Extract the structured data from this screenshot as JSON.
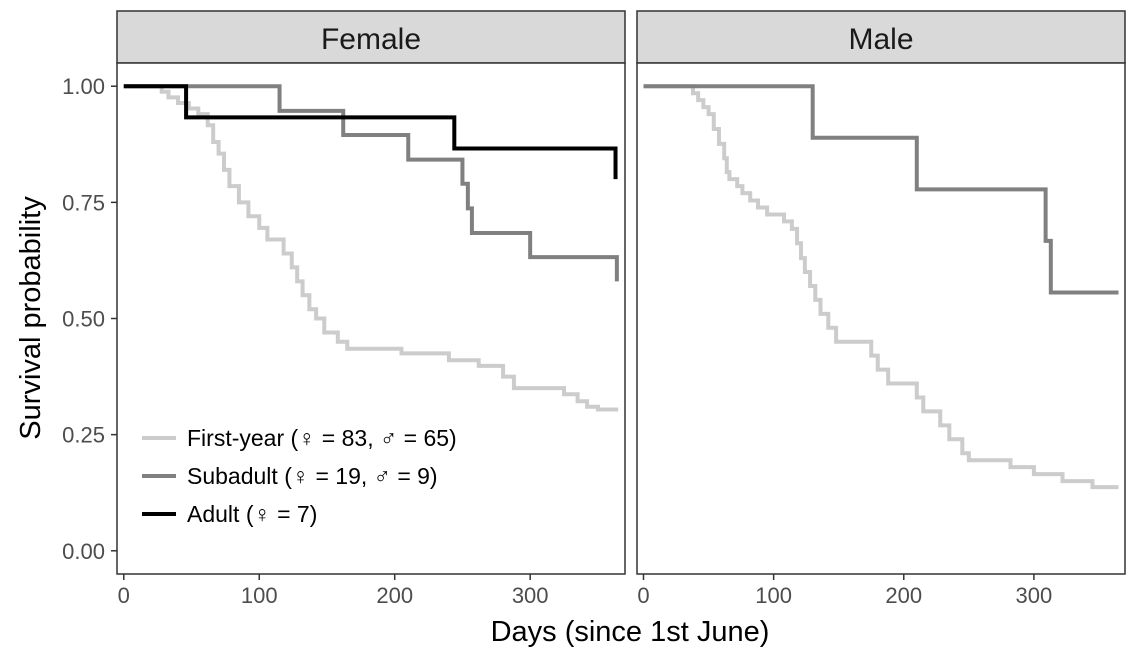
{
  "chart_data": {
    "type": "line",
    "step": true,
    "xlabel": "Days (since 1st June)",
    "ylabel": "Survival probability",
    "xlim": [
      -5,
      370
    ],
    "ylim": [
      -0.05,
      1.05
    ],
    "x_ticks": [
      0,
      100,
      200,
      300
    ],
    "y_ticks": [
      0.0,
      0.25,
      0.5,
      0.75,
      1.0
    ],
    "y_tick_labels": [
      "0.00",
      "0.25",
      "0.50",
      "0.75",
      "1.00"
    ],
    "grid": false,
    "legend_position": "bottom-left (inside Female panel)",
    "legend": [
      {
        "label": "First-year (♀ = 83, ♂ = 65)",
        "color": "#cccccc"
      },
      {
        "label": "Subadult (♀ = 19,  ♂ = 9)",
        "color": "#808080"
      },
      {
        "label": "Adult (♀ = 7)",
        "color": "#000000"
      }
    ],
    "panels": [
      {
        "title": "Female",
        "series": [
          {
            "name": "First-year",
            "color": "#cccccc",
            "points": [
              [
                0,
                1.0
              ],
              [
                28,
                1.0
              ],
              [
                28,
                0.988
              ],
              [
                33,
                0.988
              ],
              [
                33,
                0.976
              ],
              [
                40,
                0.976
              ],
              [
                40,
                0.964
              ],
              [
                48,
                0.964
              ],
              [
                48,
                0.952
              ],
              [
                55,
                0.952
              ],
              [
                55,
                0.94
              ],
              [
                62,
                0.94
              ],
              [
                62,
                0.916
              ],
              [
                66,
                0.916
              ],
              [
                66,
                0.88
              ],
              [
                70,
                0.88
              ],
              [
                70,
                0.855
              ],
              [
                74,
                0.855
              ],
              [
                74,
                0.82
              ],
              [
                78,
                0.82
              ],
              [
                78,
                0.785
              ],
              [
                85,
                0.785
              ],
              [
                85,
                0.75
              ],
              [
                92,
                0.75
              ],
              [
                92,
                0.72
              ],
              [
                100,
                0.72
              ],
              [
                100,
                0.695
              ],
              [
                106,
                0.695
              ],
              [
                106,
                0.67
              ],
              [
                118,
                0.67
              ],
              [
                118,
                0.64
              ],
              [
                124,
                0.64
              ],
              [
                124,
                0.61
              ],
              [
                128,
                0.61
              ],
              [
                128,
                0.58
              ],
              [
                132,
                0.58
              ],
              [
                132,
                0.55
              ],
              [
                137,
                0.55
              ],
              [
                137,
                0.52
              ],
              [
                142,
                0.52
              ],
              [
                142,
                0.5
              ],
              [
                148,
                0.5
              ],
              [
                148,
                0.47
              ],
              [
                158,
                0.47
              ],
              [
                158,
                0.45
              ],
              [
                165,
                0.45
              ],
              [
                165,
                0.435
              ],
              [
                205,
                0.435
              ],
              [
                205,
                0.425
              ],
              [
                240,
                0.425
              ],
              [
                240,
                0.41
              ],
              [
                262,
                0.41
              ],
              [
                262,
                0.398
              ],
              [
                280,
                0.398
              ],
              [
                280,
                0.375
              ],
              [
                288,
                0.375
              ],
              [
                288,
                0.35
              ],
              [
                325,
                0.35
              ],
              [
                325,
                0.337
              ],
              [
                335,
                0.337
              ],
              [
                335,
                0.322
              ],
              [
                342,
                0.322
              ],
              [
                342,
                0.31
              ],
              [
                350,
                0.31
              ],
              [
                350,
                0.304
              ],
              [
                365,
                0.304
              ]
            ]
          },
          {
            "name": "Subadult",
            "color": "#808080",
            "points": [
              [
                0,
                1.0
              ],
              [
                115,
                1.0
              ],
              [
                115,
                0.947
              ],
              [
                162,
                0.947
              ],
              [
                162,
                0.895
              ],
              [
                210,
                0.895
              ],
              [
                210,
                0.842
              ],
              [
                250,
                0.842
              ],
              [
                250,
                0.79
              ],
              [
                254,
                0.79
              ],
              [
                254,
                0.737
              ],
              [
                257,
                0.737
              ],
              [
                257,
                0.684
              ],
              [
                300,
                0.684
              ],
              [
                300,
                0.632
              ],
              [
                364,
                0.632
              ],
              [
                364,
                0.58
              ]
            ]
          },
          {
            "name": "Adult",
            "color": "#000000",
            "points": [
              [
                0,
                1.0
              ],
              [
                46,
                1.0
              ],
              [
                46,
                0.933
              ],
              [
                244,
                0.933
              ],
              [
                244,
                0.866
              ],
              [
                363,
                0.866
              ],
              [
                363,
                0.8
              ]
            ]
          }
        ]
      },
      {
        "title": "Male",
        "series": [
          {
            "name": "First-year",
            "color": "#cccccc",
            "points": [
              [
                0,
                1.0
              ],
              [
                38,
                1.0
              ],
              [
                38,
                0.985
              ],
              [
                42,
                0.985
              ],
              [
                42,
                0.97
              ],
              [
                46,
                0.97
              ],
              [
                46,
                0.955
              ],
              [
                50,
                0.955
              ],
              [
                50,
                0.94
              ],
              [
                54,
                0.94
              ],
              [
                54,
                0.908
              ],
              [
                58,
                0.908
              ],
              [
                58,
                0.876
              ],
              [
                62,
                0.876
              ],
              [
                62,
                0.845
              ],
              [
                64,
                0.845
              ],
              [
                64,
                0.815
              ],
              [
                66,
                0.815
              ],
              [
                66,
                0.8
              ],
              [
                72,
                0.8
              ],
              [
                72,
                0.785
              ],
              [
                76,
                0.785
              ],
              [
                76,
                0.77
              ],
              [
                82,
                0.77
              ],
              [
                82,
                0.754
              ],
              [
                88,
                0.754
              ],
              [
                88,
                0.739
              ],
              [
                95,
                0.739
              ],
              [
                95,
                0.724
              ],
              [
                108,
                0.724
              ],
              [
                108,
                0.709
              ],
              [
                114,
                0.709
              ],
              [
                114,
                0.693
              ],
              [
                118,
                0.693
              ],
              [
                118,
                0.662
              ],
              [
                121,
                0.662
              ],
              [
                121,
                0.63
              ],
              [
                124,
                0.63
              ],
              [
                124,
                0.6
              ],
              [
                128,
                0.6
              ],
              [
                128,
                0.57
              ],
              [
                132,
                0.57
              ],
              [
                132,
                0.54
              ],
              [
                136,
                0.54
              ],
              [
                136,
                0.51
              ],
              [
                142,
                0.51
              ],
              [
                142,
                0.48
              ],
              [
                148,
                0.48
              ],
              [
                148,
                0.45
              ],
              [
                175,
                0.45
              ],
              [
                175,
                0.42
              ],
              [
                180,
                0.42
              ],
              [
                180,
                0.39
              ],
              [
                188,
                0.39
              ],
              [
                188,
                0.36
              ],
              [
                210,
                0.36
              ],
              [
                210,
                0.33
              ],
              [
                215,
                0.33
              ],
              [
                215,
                0.3
              ],
              [
                228,
                0.3
              ],
              [
                228,
                0.27
              ],
              [
                235,
                0.27
              ],
              [
                235,
                0.24
              ],
              [
                245,
                0.24
              ],
              [
                245,
                0.21
              ],
              [
                250,
                0.21
              ],
              [
                250,
                0.195
              ],
              [
                282,
                0.195
              ],
              [
                282,
                0.18
              ],
              [
                300,
                0.18
              ],
              [
                300,
                0.165
              ],
              [
                322,
                0.165
              ],
              [
                322,
                0.15
              ],
              [
                345,
                0.15
              ],
              [
                345,
                0.137
              ],
              [
                365,
                0.137
              ]
            ]
          },
          {
            "name": "Subadult",
            "color": "#808080",
            "points": [
              [
                0,
                1.0
              ],
              [
                130,
                1.0
              ],
              [
                130,
                0.889
              ],
              [
                210,
                0.889
              ],
              [
                210,
                0.778
              ],
              [
                309,
                0.778
              ],
              [
                309,
                0.667
              ],
              [
                313,
                0.667
              ],
              [
                313,
                0.556
              ],
              [
                365,
                0.556
              ]
            ]
          }
        ]
      }
    ]
  }
}
